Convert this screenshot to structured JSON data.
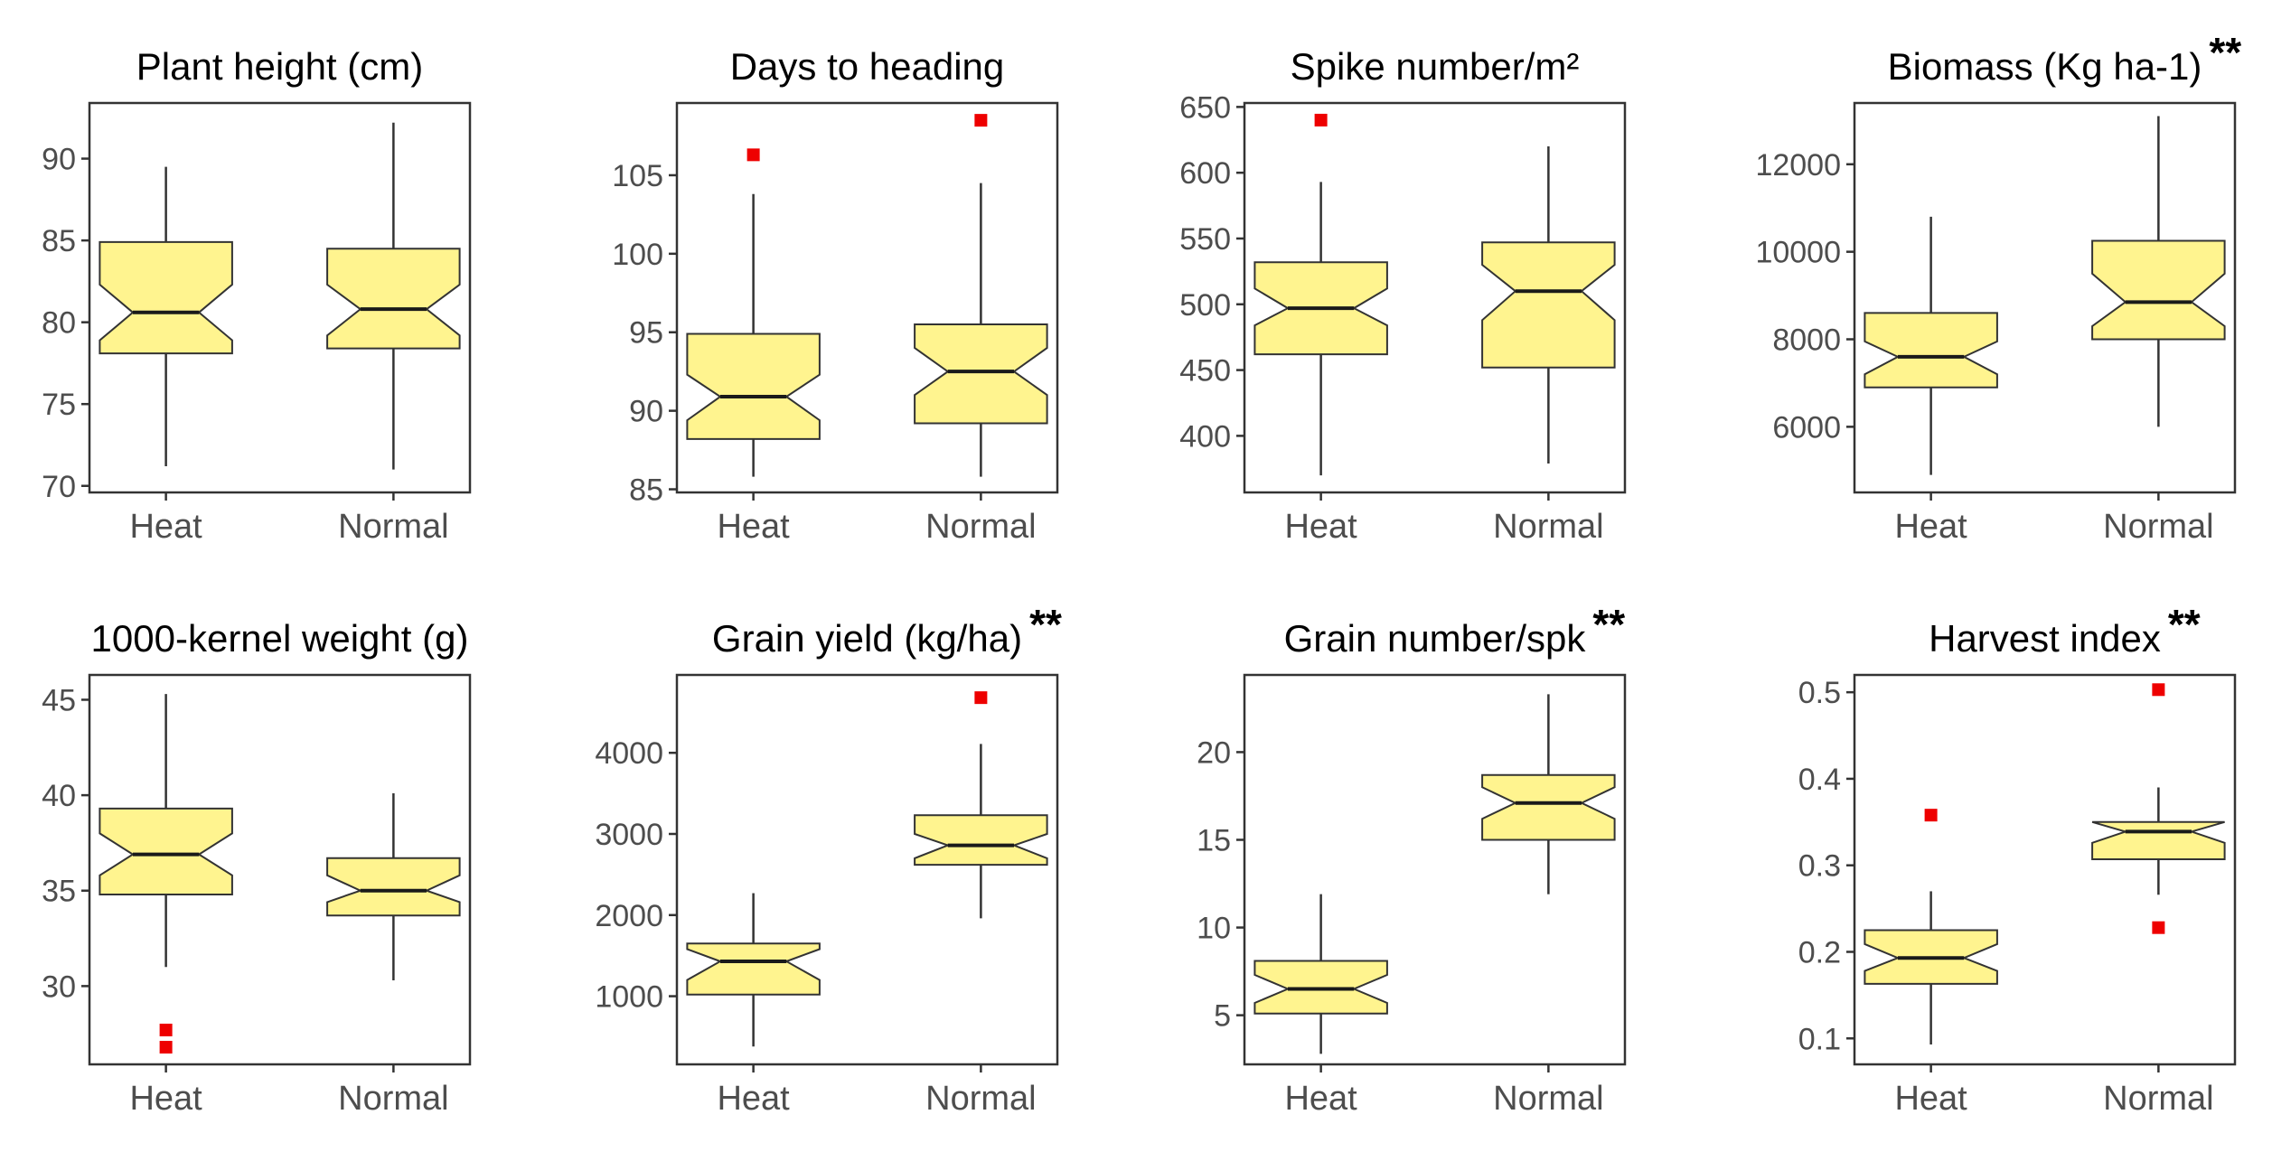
{
  "chart_data": [
    {
      "type": "boxplot",
      "title": "Plant height (cm)",
      "significance": "",
      "categories": [
        "Heat",
        "Normal"
      ],
      "yticks": [
        70,
        75,
        80,
        85,
        90
      ],
      "ylim": [
        69.6,
        93.4
      ],
      "boxes": [
        {
          "name": "Heat",
          "min": 71.2,
          "q1": 78.1,
          "median": 80.6,
          "q3": 84.9,
          "max": 89.5,
          "notch_low": 78.9,
          "notch_high": 82.3,
          "outliers": []
        },
        {
          "name": "Normal",
          "min": 71.0,
          "q1": 78.4,
          "median": 80.8,
          "q3": 84.5,
          "max": 92.2,
          "notch_low": 79.2,
          "notch_high": 82.3,
          "outliers": []
        }
      ]
    },
    {
      "type": "boxplot",
      "title": "Days to heading",
      "significance": "",
      "categories": [
        "Heat",
        "Normal"
      ],
      "yticks": [
        85,
        90,
        95,
        100,
        105
      ],
      "ylim": [
        84.8,
        109.6
      ],
      "boxes": [
        {
          "name": "Heat",
          "min": 85.8,
          "q1": 88.2,
          "median": 90.9,
          "q3": 94.9,
          "max": 103.8,
          "notch_low": 89.4,
          "notch_high": 92.3,
          "outliers": [
            106.3
          ]
        },
        {
          "name": "Normal",
          "min": 85.8,
          "q1": 89.2,
          "median": 92.5,
          "q3": 95.5,
          "max": 104.5,
          "notch_low": 91.0,
          "notch_high": 94.0,
          "outliers": [
            108.5
          ]
        }
      ]
    },
    {
      "type": "boxplot",
      "title": "Spike number/m²",
      "significance": "",
      "categories": [
        "Heat",
        "Normal"
      ],
      "yticks": [
        400,
        450,
        500,
        550,
        600,
        650
      ],
      "ylim": [
        357,
        653
      ],
      "boxes": [
        {
          "name": "Heat",
          "min": 370,
          "q1": 462,
          "median": 497,
          "q3": 532,
          "max": 593,
          "notch_low": 484,
          "notch_high": 512,
          "outliers": [
            640
          ]
        },
        {
          "name": "Normal",
          "min": 379,
          "q1": 452,
          "median": 510,
          "q3": 547,
          "max": 620,
          "notch_low": 488,
          "notch_high": 530,
          "outliers": []
        }
      ]
    },
    {
      "type": "boxplot",
      "title": "Biomass (Kg ha-1)",
      "significance": "**",
      "categories": [
        "Heat",
        "Normal"
      ],
      "yticks": [
        6000,
        8000,
        10000,
        12000
      ],
      "ylim": [
        4500,
        13400
      ],
      "boxes": [
        {
          "name": "Heat",
          "min": 4900,
          "q1": 6900,
          "median": 7600,
          "q3": 8600,
          "max": 10800,
          "notch_low": 7200,
          "notch_high": 7950,
          "outliers": []
        },
        {
          "name": "Normal",
          "min": 6000,
          "q1": 8000,
          "median": 8850,
          "q3": 10250,
          "max": 13100,
          "notch_low": 8300,
          "notch_high": 9500,
          "outliers": []
        }
      ]
    },
    {
      "type": "boxplot",
      "title": "1000-kernel weight (g)",
      "significance": "",
      "categories": [
        "Heat",
        "Normal"
      ],
      "yticks": [
        30,
        35,
        40,
        45
      ],
      "ylim": [
        25.9,
        46.3
      ],
      "boxes": [
        {
          "name": "Heat",
          "min": 31.0,
          "q1": 34.8,
          "median": 36.9,
          "q3": 39.3,
          "max": 45.3,
          "notch_low": 35.8,
          "notch_high": 38.0,
          "outliers": [
            27.7,
            26.8
          ]
        },
        {
          "name": "Normal",
          "min": 30.3,
          "q1": 33.7,
          "median": 35.0,
          "q3": 36.7,
          "max": 40.1,
          "notch_low": 34.4,
          "notch_high": 35.8,
          "outliers": []
        }
      ]
    },
    {
      "type": "boxplot",
      "title": "Grain yield (kg/ha)",
      "significance": "**",
      "categories": [
        "Heat",
        "Normal"
      ],
      "yticks": [
        1000,
        2000,
        3000,
        4000
      ],
      "ylim": [
        160,
        4960
      ],
      "boxes": [
        {
          "name": "Heat",
          "min": 380,
          "q1": 1020,
          "median": 1430,
          "q3": 1650,
          "max": 2270,
          "notch_low": 1200,
          "notch_high": 1580,
          "outliers": []
        },
        {
          "name": "Normal",
          "min": 1960,
          "q1": 2620,
          "median": 2860,
          "q3": 3230,
          "max": 4110,
          "notch_low": 2700,
          "notch_high": 3000,
          "outliers": [
            4680
          ]
        }
      ]
    },
    {
      "type": "boxplot",
      "title": "Grain number/spk",
      "significance": "**",
      "categories": [
        "Heat",
        "Normal"
      ],
      "yticks": [
        5,
        10,
        15,
        20
      ],
      "ylim": [
        2.2,
        24.4
      ],
      "boxes": [
        {
          "name": "Heat",
          "min": 2.8,
          "q1": 5.1,
          "median": 6.5,
          "q3": 8.1,
          "max": 11.9,
          "notch_low": 5.7,
          "notch_high": 7.3,
          "outliers": []
        },
        {
          "name": "Normal",
          "min": 11.9,
          "q1": 15.0,
          "median": 17.1,
          "q3": 18.7,
          "max": 23.3,
          "notch_low": 16.2,
          "notch_high": 18.0,
          "outliers": []
        }
      ]
    },
    {
      "type": "boxplot",
      "title": "Harvest index",
      "significance": "**",
      "categories": [
        "Heat",
        "Normal"
      ],
      "yticks": [
        0.1,
        0.2,
        0.3,
        0.4,
        0.5
      ],
      "ylim": [
        0.07,
        0.52
      ],
      "boxes": [
        {
          "name": "Heat",
          "min": 0.093,
          "q1": 0.163,
          "median": 0.193,
          "q3": 0.225,
          "max": 0.27,
          "notch_low": 0.178,
          "notch_high": 0.209,
          "outliers": [
            0.358
          ]
        },
        {
          "name": "Normal",
          "min": 0.266,
          "q1": 0.307,
          "median": 0.339,
          "q3": 0.35,
          "max": 0.39,
          "notch_low": 0.326,
          "notch_high": 0.352,
          "outliers": [
            0.503,
            0.228
          ]
        }
      ]
    }
  ]
}
